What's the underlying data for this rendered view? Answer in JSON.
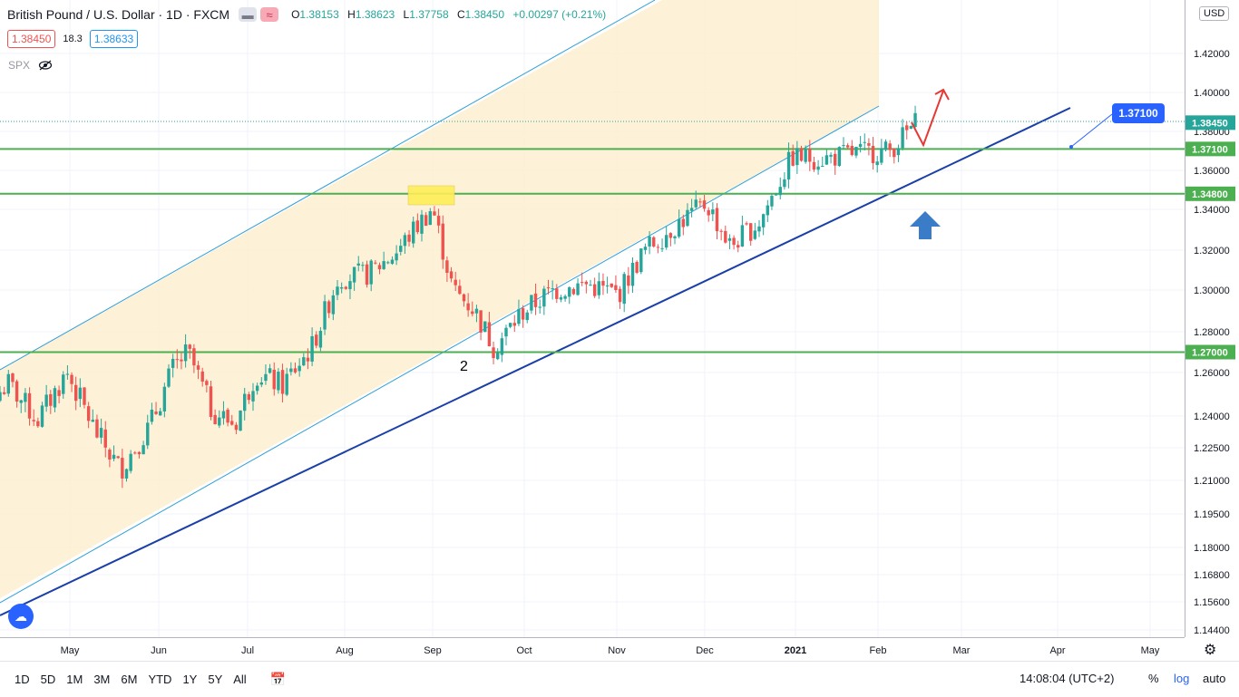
{
  "header": {
    "title": "British Pound / U.S. Dollar · 1D · FXCM",
    "ohlc": {
      "o_label": "O",
      "o": "1.38153",
      "h_label": "H",
      "h": "1.38623",
      "l_label": "L",
      "l": "1.37758",
      "c_label": "C",
      "c": "1.38450",
      "change": "+0.00297 (+0.21%)"
    },
    "sell_price": "1.38450",
    "spread": "18.3",
    "buy_price": "1.38633",
    "indicator": "SPX",
    "currency": "USD"
  },
  "icons": {
    "eye_off": "eye-off-icon",
    "settings": "gear-icon",
    "calendar": "calendar-icon",
    "logo": "tradingview-logo-icon"
  },
  "colors": {
    "up": "#26a69a",
    "down": "#ef5350",
    "channel_fill": "#fdefd0",
    "channel_line": "#2d9fd9",
    "trendline": "#1a3fa8",
    "level": "#4caf50",
    "highlight": "#ffee58",
    "arrow_up": "#3a7cc8",
    "arrow_red": "#e53935"
  },
  "chart_data": {
    "type": "candlestick",
    "symbol": "GBPUSD",
    "ylim": [
      1.14,
      1.43
    ],
    "x_ticks": [
      "May",
      "Jun",
      "Jul",
      "Aug",
      "Sep",
      "Oct",
      "Nov",
      "Dec",
      "2021",
      "Feb",
      "Mar",
      "Apr",
      "May"
    ],
    "y_ticks": [
      "1.42000",
      "1.40000",
      "1.38000",
      "1.36000",
      "1.34000",
      "1.32000",
      "1.30000",
      "1.28000",
      "1.26000",
      "1.24000",
      "1.22500",
      "1.21000",
      "1.19500",
      "1.18000",
      "1.16800",
      "1.15600",
      "1.14400"
    ],
    "horizontal_levels": [
      {
        "value": 1.371,
        "label": "1.37100"
      },
      {
        "value": 1.348,
        "label": "1.34800"
      },
      {
        "value": 1.27,
        "label": "1.27000"
      }
    ],
    "last_price": {
      "value": 1.3845,
      "label": "1.38450"
    },
    "callout": "1.37100",
    "annotation": "2",
    "candles_close_path": [
      [
        "2020-04-01",
        1.242
      ],
      [
        "2020-04-10",
        1.255
      ],
      [
        "2020-04-20",
        1.238
      ],
      [
        "2020-04-30",
        1.26
      ],
      [
        "2020-05-10",
        1.232
      ],
      [
        "2020-05-18",
        1.215
      ],
      [
        "2020-05-28",
        1.235
      ],
      [
        "2020-06-05",
        1.262
      ],
      [
        "2020-06-10",
        1.27
      ],
      [
        "2020-06-18",
        1.243
      ],
      [
        "2020-06-26",
        1.236
      ],
      [
        "2020-07-03",
        1.26
      ],
      [
        "2020-07-12",
        1.254
      ],
      [
        "2020-07-22",
        1.272
      ],
      [
        "2020-07-31",
        1.306
      ],
      [
        "2020-08-10",
        1.308
      ],
      [
        "2020-08-19",
        1.318
      ],
      [
        "2020-08-28",
        1.334
      ],
      [
        "2020-09-01",
        1.341
      ],
      [
        "2020-09-08",
        1.3
      ],
      [
        "2020-09-15",
        1.291
      ],
      [
        "2020-09-22",
        1.272
      ],
      [
        "2020-10-01",
        1.289
      ],
      [
        "2020-10-12",
        1.3
      ],
      [
        "2020-10-23",
        1.303
      ],
      [
        "2020-11-03",
        1.298
      ],
      [
        "2020-11-12",
        1.32
      ],
      [
        "2020-11-24",
        1.334
      ],
      [
        "2020-12-03",
        1.343
      ],
      [
        "2020-12-11",
        1.322
      ],
      [
        "2020-12-21",
        1.334
      ],
      [
        "2021-01-01",
        1.367
      ],
      [
        "2021-01-12",
        1.366
      ],
      [
        "2021-01-22",
        1.369
      ],
      [
        "2021-02-03",
        1.37
      ],
      [
        "2021-02-12",
        1.3845
      ]
    ]
  }
}
